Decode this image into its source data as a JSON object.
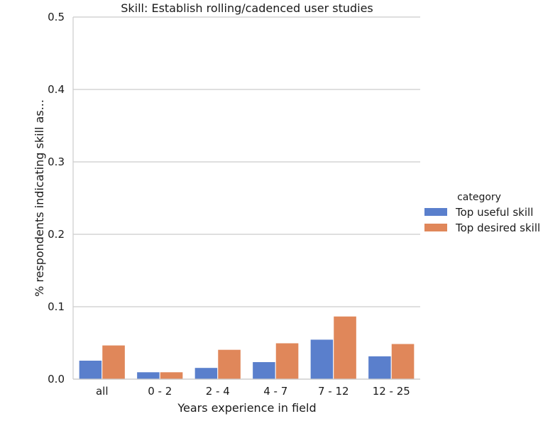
{
  "chart_data": {
    "type": "bar",
    "title": "Skill: Establish rolling/cadenced user studies",
    "xlabel": "Years experience in field",
    "ylabel": "% respondents indicating skill as...",
    "categories": [
      "all",
      "0 - 2",
      "2 - 4",
      "4 - 7",
      "7 - 12",
      "12 - 25"
    ],
    "ylim": [
      0,
      0.5
    ],
    "yticks": [
      "0.0",
      "0.1",
      "0.2",
      "0.3",
      "0.4",
      "0.5"
    ],
    "grid": "horizontal",
    "legend": {
      "title": "category",
      "placement": "right"
    },
    "series": [
      {
        "name": "Top useful skill",
        "color": "#5a7fcc",
        "values": [
          0.026,
          0.01,
          0.016,
          0.024,
          0.055,
          0.032
        ]
      },
      {
        "name": "Top desired skill",
        "color": "#e0875a",
        "values": [
          0.047,
          0.01,
          0.041,
          0.05,
          0.087,
          0.049
        ]
      }
    ]
  }
}
